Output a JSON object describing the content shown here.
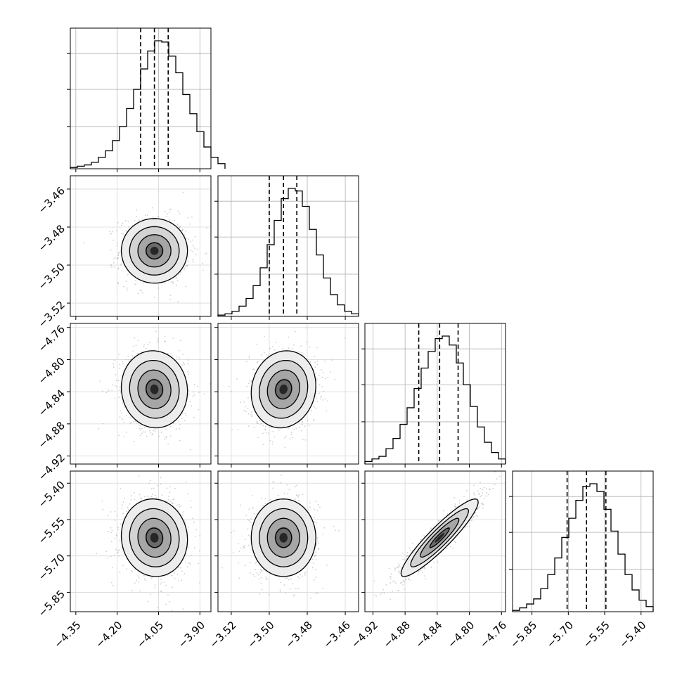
{
  "chart_data": {
    "type": "corner",
    "description_free": true,
    "parameters": [
      {
        "axis_ticks": [
          "−4.35",
          "−4.20",
          "−4.05",
          "−3.90"
        ],
        "tick_values": [
          -4.35,
          -4.2,
          -4.05,
          -3.9
        ],
        "range": [
          -4.37,
          -3.86
        ],
        "median": -4.065,
        "q16": -4.115,
        "q84": -4.015,
        "std": 0.06
      },
      {
        "axis_ticks": [
          "−3.52",
          "−3.50",
          "−3.48",
          "−3.46"
        ],
        "tick_values": [
          -3.52,
          -3.5,
          -3.48,
          -3.46
        ],
        "range": [
          -3.527,
          -3.453
        ],
        "median": -3.4925,
        "q16": -3.5,
        "q84": -3.4855,
        "std": 0.0085
      },
      {
        "axis_ticks": [
          "−4.92",
          "−4.88",
          "−4.84",
          "−4.80",
          "−4.76"
        ],
        "tick_values": [
          -4.92,
          -4.88,
          -4.84,
          -4.8,
          -4.76
        ],
        "range": [
          -4.93,
          -4.755
        ],
        "median": -4.837,
        "q16": -4.863,
        "q84": -4.814,
        "std": 0.024
      },
      {
        "axis_ticks": [
          "−5.85",
          "−5.70",
          "−5.55",
          "−5.40"
        ],
        "tick_values": [
          -5.85,
          -5.7,
          -5.55,
          -5.4
        ],
        "range": [
          -5.93,
          -5.35
        ],
        "median": -5.625,
        "q16": -5.705,
        "q84": -5.545,
        "std": 0.08
      }
    ],
    "histograms": [
      {
        "param": 0,
        "bin_start": -4.37,
        "bin_width": 0.0255,
        "counts": [
          1,
          2,
          3,
          5,
          9,
          14,
          22,
          33,
          47,
          62,
          78,
          92,
          100,
          99,
          88,
          75,
          58,
          43,
          29,
          17,
          9,
          4
        ]
      },
      {
        "param": 1,
        "bin_start": -3.527,
        "bin_width": 0.0037,
        "counts": [
          1,
          2,
          4,
          8,
          14,
          24,
          38,
          56,
          75,
          92,
          100,
          98,
          86,
          68,
          48,
          30,
          17,
          9,
          4,
          2
        ]
      },
      {
        "param": 2,
        "bin_start": -4.93,
        "bin_width": 0.00875,
        "counts": [
          2,
          4,
          6,
          12,
          20,
          31,
          44,
          59,
          75,
          88,
          98,
          100,
          93,
          79,
          62,
          45,
          29,
          17,
          9,
          4
        ]
      },
      {
        "param": 3,
        "bin_start": -5.93,
        "bin_width": 0.029,
        "counts": [
          1,
          3,
          6,
          10,
          18,
          29,
          42,
          58,
          73,
          87,
          98,
          100,
          94,
          80,
          63,
          45,
          29,
          17,
          9,
          4
        ]
      }
    ],
    "correlations": [
      {
        "x": 0,
        "y": 1,
        "rho": 0.0
      },
      {
        "x": 0,
        "y": 2,
        "rho": -0.05
      },
      {
        "x": 1,
        "y": 2,
        "rho": 0.1
      },
      {
        "x": 0,
        "y": 3,
        "rho": -0.05
      },
      {
        "x": 1,
        "y": 3,
        "rho": 0.0
      },
      {
        "x": 2,
        "y": 3,
        "rho": 0.92
      }
    ],
    "title": "",
    "grid": true
  }
}
